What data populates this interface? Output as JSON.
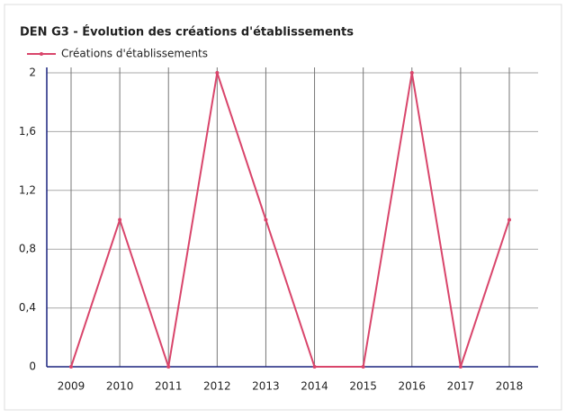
{
  "chart_data": {
    "type": "line",
    "title": "DEN G3 - Évolution des créations d'établissements",
    "categories": [
      "2009",
      "2010",
      "2011",
      "2012",
      "2013",
      "2014",
      "2015",
      "2016",
      "2017",
      "2018"
    ],
    "series": [
      {
        "name": "Créations d'établissements",
        "color": "#d9456b",
        "values": [
          0,
          1,
          0,
          2,
          1,
          0,
          0,
          2,
          0,
          1
        ]
      }
    ],
    "ylim": [
      0,
      2
    ],
    "yticks": [
      0,
      {
        "value": 0.4,
        "label": "0,4"
      },
      {
        "value": 0.8,
        "label": "0,8"
      },
      {
        "value": 1.2,
        "label": "1,2"
      },
      {
        "value": 1.6,
        "label": "1,6"
      },
      2
    ],
    "grid": true,
    "legend": "top-left"
  }
}
